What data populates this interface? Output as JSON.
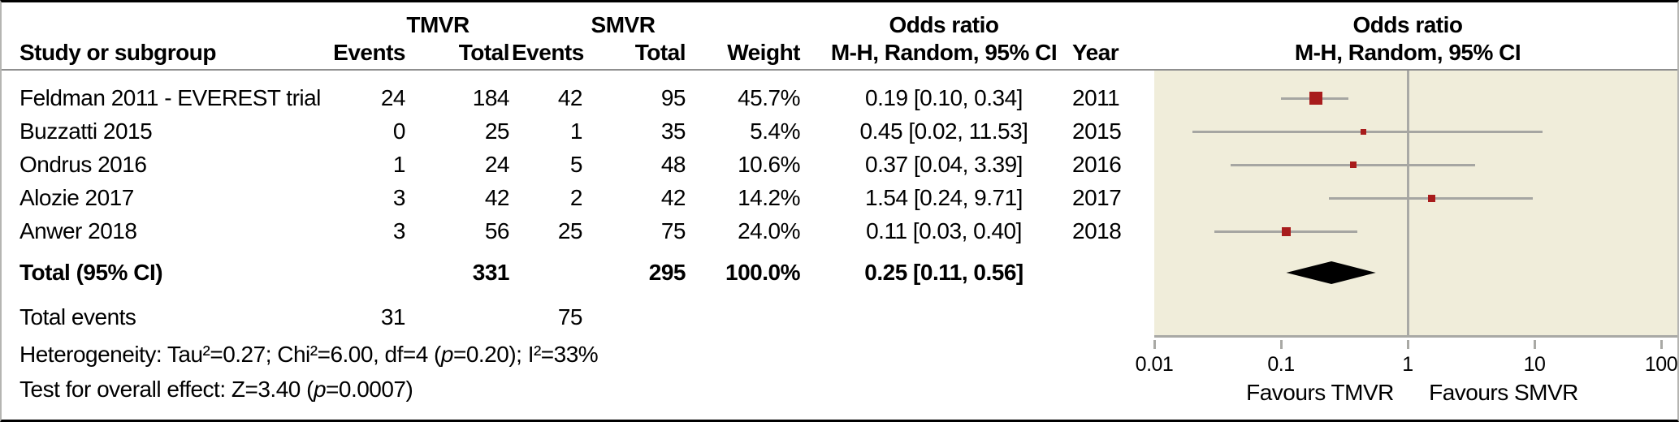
{
  "table": {
    "headers": {
      "study": "Study or subgroup",
      "group1": "TMVR",
      "group2": "SMVR",
      "events1": "Events",
      "total1": "Total",
      "events2": "Events",
      "total2": "Total",
      "weight": "Weight",
      "or_line1": "Odds ratio",
      "or_line2": "M-H, Random, 95% CI",
      "year": "Year",
      "plot_line1": "Odds ratio",
      "plot_line2": "M-H, Random, 95% CI"
    }
  },
  "chart_data": {
    "type": "forest",
    "effect_measure": "Odds ratio, M-H, Random, 95% CI",
    "x_axis": {
      "scale": "log",
      "ticks": [
        0.01,
        0.1,
        1,
        10,
        100
      ],
      "tick_labels": [
        "0.01",
        "0.1",
        "1",
        "10",
        "100"
      ],
      "left_label": "Favours TMVR",
      "right_label": "Favours SMVR"
    },
    "studies": [
      {
        "name": "Feldman 2011 - EVEREST trial",
        "tmvr_events": "24",
        "tmvr_total": "184",
        "smvr_events": "42",
        "smvr_total": "95",
        "weight": "45.7%",
        "weight_pct": 45.7,
        "or": 0.19,
        "ci_low": 0.1,
        "ci_high": 0.34,
        "or_ci_label": "0.19 [0.10, 0.34]",
        "year": "2011"
      },
      {
        "name": "Buzzatti 2015",
        "tmvr_events": "0",
        "tmvr_total": "25",
        "smvr_events": "1",
        "smvr_total": "35",
        "weight": "5.4%",
        "weight_pct": 5.4,
        "or": 0.45,
        "ci_low": 0.02,
        "ci_high": 11.53,
        "or_ci_label": "0.45 [0.02, 11.53]",
        "year": "2015"
      },
      {
        "name": "Ondrus 2016",
        "tmvr_events": "1",
        "tmvr_total": "24",
        "smvr_events": "5",
        "smvr_total": "48",
        "weight": "10.6%",
        "weight_pct": 10.6,
        "or": 0.37,
        "ci_low": 0.04,
        "ci_high": 3.39,
        "or_ci_label": "0.37 [0.04, 3.39]",
        "year": "2016"
      },
      {
        "name": "Alozie 2017",
        "tmvr_events": "3",
        "tmvr_total": "42",
        "smvr_events": "2",
        "smvr_total": "42",
        "weight": "14.2%",
        "weight_pct": 14.2,
        "or": 1.54,
        "ci_low": 0.24,
        "ci_high": 9.71,
        "or_ci_label": "1.54 [0.24, 9.71]",
        "year": "2017"
      },
      {
        "name": "Anwer 2018",
        "tmvr_events": "3",
        "tmvr_total": "56",
        "smvr_events": "25",
        "smvr_total": "75",
        "weight": "24.0%",
        "weight_pct": 24.0,
        "or": 0.11,
        "ci_low": 0.03,
        "ci_high": 0.4,
        "or_ci_label": "0.11 [0.03, 0.40]",
        "year": "2018"
      }
    ],
    "total": {
      "label": "Total (95% CI)",
      "tmvr_total": "331",
      "smvr_total": "295",
      "weight": "100.0%",
      "or": 0.25,
      "ci_low": 0.11,
      "ci_high": 0.56,
      "or_ci_label": "0.25 [0.11, 0.56]"
    }
  },
  "footer": {
    "total_events_label": "Total events",
    "total_events_tmvr": "31",
    "total_events_smvr": "75",
    "het_before_p": "Heterogeneity: Tau²=0.27; Chi²=6.00, df=4 (",
    "het_p": "p",
    "het_after_p": "=0.20); I²=33%",
    "test_before_p": "Test for overall effect: Z=3.40 (",
    "test_p": "p",
    "test_after_p": "=0.0007)"
  },
  "colors": {
    "marker": "#a81c1c",
    "ci_line": "#a6a6a2",
    "axis": "#a9a9a5",
    "plot_bg": "#f0edda",
    "diamond": "#000000",
    "header_rule": "#8f8f8f"
  }
}
